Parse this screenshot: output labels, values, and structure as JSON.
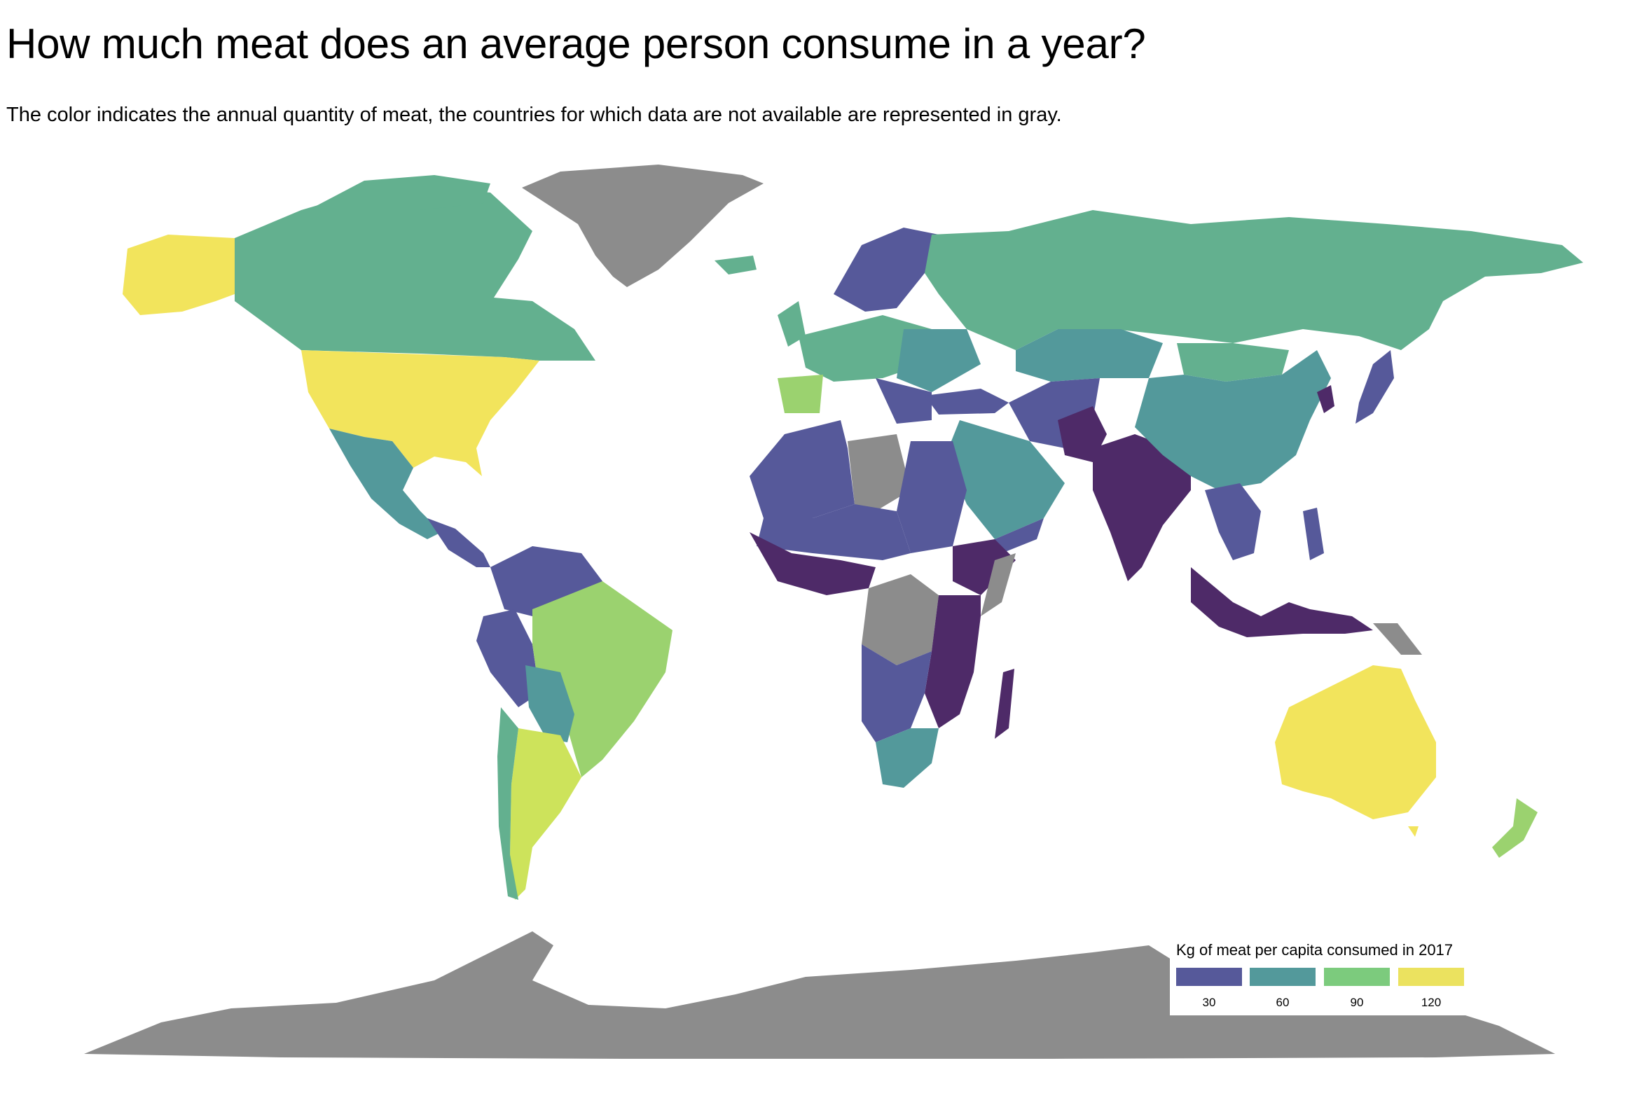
{
  "header": {
    "title": "How much meat does an average person consume in a year?",
    "subtitle": "The color indicates the annual quantity of meat, the countries for which data are not available are represented in gray."
  },
  "legend": {
    "title": "Kg of meat per capita consumed in 2017",
    "items": [
      {
        "label": "30",
        "color": "#56599a"
      },
      {
        "label": "60",
        "color": "#53999b"
      },
      {
        "label": "90",
        "color": "#7ccb7d"
      },
      {
        "label": "120",
        "color": "#ebe25f"
      }
    ]
  },
  "colors": {
    "no_data": "#8c8c8c",
    "very_low": "#4e2a68",
    "low": "#56599a",
    "mid": "#53999b",
    "high": "#63b08f",
    "higher": "#9bd26f",
    "highest": "#f2e45c",
    "argentina": "#cde35b"
  }
}
